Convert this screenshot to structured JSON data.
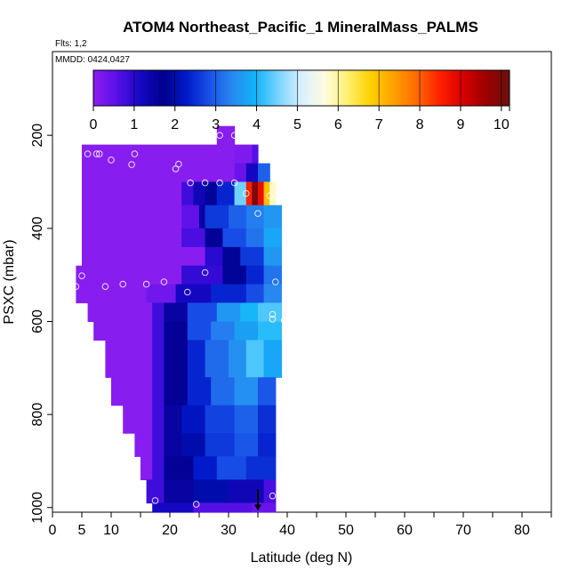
{
  "chart_data": {
    "type": "heatmap",
    "title": "ATOM4 Northeast_Pacific_1 MineralMass_PALMS",
    "subtitle_flights": "Flts: 1,2",
    "subtitle_dates": "MMDD: 0424,0427",
    "xlabel": "Latitude (deg N)",
    "ylabel": "PSXC (mbar)",
    "xlim": [
      0,
      85
    ],
    "ylim": [
      1010,
      20
    ],
    "y_reversed": true,
    "x_ticks": [
      0,
      5,
      10,
      20,
      30,
      40,
      50,
      60,
      70,
      80
    ],
    "x_minor_ticks": [
      15,
      25,
      35,
      45,
      55,
      65,
      75,
      85
    ],
    "y_ticks": [
      200,
      400,
      600,
      800,
      1000
    ],
    "colorbar": {
      "min": 0,
      "max": 10.2,
      "ticks": [
        0,
        1,
        2,
        3,
        4,
        5,
        6,
        7,
        8,
        9,
        10
      ],
      "colors": [
        "#8c1ef0",
        "#5a10e8",
        "#1808c8",
        "#00008c",
        "#0018c8",
        "#1850e8",
        "#2888f0",
        "#10b4f8",
        "#78d4ff",
        "#d8f0ff",
        "#fffce0",
        "#fff070",
        "#ffd000",
        "#ffa000",
        "#ff6800",
        "#ff2000",
        "#d80000",
        "#9c0000",
        "#6a1010"
      ]
    },
    "grid": false,
    "legend": "none",
    "levels": [
      {
        "p": [
          180,
          220
        ],
        "segments": [
          [
            28,
            31,
            0.05
          ]
        ]
      },
      {
        "p": [
          220,
          260
        ],
        "segments": [
          [
            5,
            26,
            0.05
          ],
          [
            26,
            31,
            0.05
          ],
          [
            31,
            34,
            0.15
          ],
          [
            34,
            35,
            0.6
          ]
        ]
      },
      {
        "p": [
          260,
          300
        ],
        "segments": [
          [
            5,
            31,
            0.05
          ],
          [
            31,
            33,
            0.4
          ],
          [
            33,
            35,
            1.2
          ],
          [
            35,
            37,
            3.0
          ]
        ]
      },
      {
        "p": [
          300,
          350
        ],
        "segments": [
          [
            5,
            22,
            0.05
          ],
          [
            22,
            24,
            0.8
          ],
          [
            24,
            26,
            1.3
          ],
          [
            26,
            28,
            1.8
          ],
          [
            28,
            31,
            2.4
          ],
          [
            31,
            33,
            4.5
          ],
          [
            33,
            34,
            8.5
          ],
          [
            34,
            35,
            10.0
          ],
          [
            35,
            36,
            8.8
          ],
          [
            36,
            37,
            7.0
          ],
          [
            37,
            38,
            5.8
          ]
        ]
      },
      {
        "p": [
          350,
          400
        ],
        "segments": [
          [
            5,
            22,
            0.05
          ],
          [
            22,
            25,
            0.5
          ],
          [
            25,
            26,
            1.5
          ],
          [
            26,
            30,
            2.6
          ],
          [
            30,
            33,
            3.0
          ],
          [
            33,
            36,
            3.3
          ],
          [
            36,
            39,
            3.6
          ]
        ]
      },
      {
        "p": [
          400,
          440
        ],
        "segments": [
          [
            5,
            22,
            0.05
          ],
          [
            22,
            26,
            0.7
          ],
          [
            26,
            29,
            1.6
          ],
          [
            29,
            33,
            2.8
          ],
          [
            33,
            36,
            3.2
          ],
          [
            36,
            39,
            3.8
          ]
        ]
      },
      {
        "p": [
          440,
          480
        ],
        "segments": [
          [
            5,
            18,
            0.05
          ],
          [
            18,
            26,
            0.05
          ],
          [
            26,
            29,
            1.0
          ],
          [
            29,
            32,
            1.8
          ],
          [
            32,
            36,
            2.6
          ],
          [
            36,
            39,
            3.6
          ]
        ]
      },
      {
        "p": [
          480,
          520
        ],
        "segments": [
          [
            4,
            17,
            0.05
          ],
          [
            17,
            22,
            0.05
          ],
          [
            22,
            29,
            0.9
          ],
          [
            29,
            33,
            1.8
          ],
          [
            33,
            36,
            2.4
          ],
          [
            36,
            39,
            3.2
          ]
        ]
      },
      {
        "p": [
          520,
          560
        ],
        "segments": [
          [
            4,
            16,
            0.05
          ],
          [
            16,
            21,
            0.3
          ],
          [
            21,
            27,
            1.2
          ],
          [
            27,
            33,
            2.4
          ],
          [
            33,
            36,
            2.8
          ],
          [
            36,
            39,
            3.4
          ]
        ]
      },
      {
        "p": [
          560,
          600
        ],
        "segments": [
          [
            6,
            17,
            0.05
          ],
          [
            17,
            19,
            0.8
          ],
          [
            19,
            23,
            1.5
          ],
          [
            23,
            28,
            2.8
          ],
          [
            28,
            32,
            3.6
          ],
          [
            32,
            35,
            4.0
          ],
          [
            35,
            39,
            4.3
          ]
        ]
      },
      {
        "p": [
          600,
          640
        ],
        "segments": [
          [
            7,
            17,
            0.05
          ],
          [
            17,
            19,
            0.8
          ],
          [
            19,
            23,
            1.6
          ],
          [
            23,
            27,
            2.8
          ],
          [
            27,
            31,
            3.3
          ],
          [
            31,
            35,
            3.7
          ],
          [
            35,
            39,
            4.1
          ]
        ]
      },
      {
        "p": [
          640,
          720
        ],
        "segments": [
          [
            9,
            17,
            0.05
          ],
          [
            17,
            19,
            0.8
          ],
          [
            19,
            23,
            1.6
          ],
          [
            23,
            26,
            2.4
          ],
          [
            26,
            30,
            3.1
          ],
          [
            30,
            33,
            3.5
          ],
          [
            33,
            36,
            4.3
          ],
          [
            36,
            39,
            3.8
          ]
        ]
      },
      {
        "p": [
          720,
          780
        ],
        "segments": [
          [
            10,
            17,
            0.05
          ],
          [
            17,
            19,
            0.8
          ],
          [
            19,
            23,
            1.6
          ],
          [
            23,
            27,
            2.4
          ],
          [
            27,
            31,
            3.1
          ],
          [
            31,
            35,
            3.5
          ],
          [
            35,
            38,
            2.9
          ]
        ]
      },
      {
        "p": [
          780,
          840
        ],
        "segments": [
          [
            12,
            17,
            0.05
          ],
          [
            17,
            19,
            0.8
          ],
          [
            19,
            22,
            1.5
          ],
          [
            22,
            26,
            2.2
          ],
          [
            26,
            31,
            2.7
          ],
          [
            31,
            35,
            3.0
          ],
          [
            35,
            38,
            2.5
          ]
        ]
      },
      {
        "p": [
          840,
          890
        ],
        "segments": [
          [
            14,
            17,
            0.05
          ],
          [
            17,
            19,
            0.8
          ],
          [
            19,
            22,
            1.5
          ],
          [
            22,
            26,
            2.0
          ],
          [
            26,
            31,
            2.6
          ],
          [
            31,
            35,
            2.9
          ],
          [
            35,
            38,
            2.4
          ]
        ]
      },
      {
        "p": [
          890,
          940
        ],
        "segments": [
          [
            15,
            17,
            0.05
          ],
          [
            17,
            19,
            0.8
          ],
          [
            19,
            24,
            1.6
          ],
          [
            24,
            28,
            2.3
          ],
          [
            28,
            33,
            2.8
          ],
          [
            33,
            38,
            2.5
          ]
        ]
      },
      {
        "p": [
          940,
          990
        ],
        "segments": [
          [
            16,
            19,
            0.8
          ],
          [
            19,
            24,
            1.5
          ],
          [
            24,
            30,
            2.0
          ],
          [
            30,
            36,
            1.3
          ],
          [
            36,
            38,
            0.7
          ]
        ]
      },
      {
        "p": [
          990,
          1010
        ],
        "segments": [
          [
            17,
            24,
            1.2
          ],
          [
            24,
            34,
            0.6
          ],
          [
            34,
            38,
            0.4
          ]
        ]
      }
    ],
    "sample_points": [
      {
        "lat": 28.5,
        "p": 200
      },
      {
        "lat": 31.0,
        "p": 200
      },
      {
        "lat": 6.0,
        "p": 240
      },
      {
        "lat": 7.5,
        "p": 240
      },
      {
        "lat": 8.0,
        "p": 240
      },
      {
        "lat": 14.0,
        "p": 240
      },
      {
        "lat": 10.0,
        "p": 253
      },
      {
        "lat": 13.5,
        "p": 263
      },
      {
        "lat": 21.5,
        "p": 262
      },
      {
        "lat": 21.0,
        "p": 272
      },
      {
        "lat": 23.5,
        "p": 302
      },
      {
        "lat": 26.0,
        "p": 302
      },
      {
        "lat": 28.5,
        "p": 302
      },
      {
        "lat": 31.0,
        "p": 302
      },
      {
        "lat": 33.0,
        "p": 325
      },
      {
        "lat": 37.0,
        "p": 330
      },
      {
        "lat": 35.0,
        "p": 368
      },
      {
        "lat": 26.0,
        "p": 495
      },
      {
        "lat": 5.0,
        "p": 502
      },
      {
        "lat": 19.0,
        "p": 515
      },
      {
        "lat": 38.0,
        "p": 515
      },
      {
        "lat": 12.0,
        "p": 520
      },
      {
        "lat": 16.0,
        "p": 520
      },
      {
        "lat": 9.0,
        "p": 525
      },
      {
        "lat": 4.0,
        "p": 525
      },
      {
        "lat": 23.0,
        "p": 537
      },
      {
        "lat": 37.5,
        "p": 585
      },
      {
        "lat": 37.5,
        "p": 595
      },
      {
        "lat": 39.5,
        "p": 598
      },
      {
        "lat": 37.5,
        "p": 975
      },
      {
        "lat": 17.5,
        "p": 985
      },
      {
        "lat": 24.5,
        "p": 993
      }
    ],
    "arrow": {
      "lat": 35,
      "p_from": 960,
      "p_to": 1005
    }
  }
}
